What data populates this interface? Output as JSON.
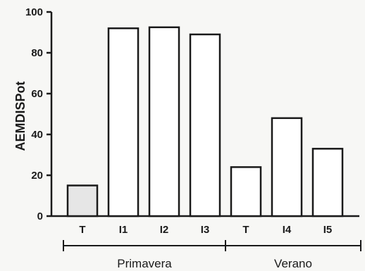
{
  "chart_data": {
    "type": "bar",
    "title": "",
    "xlabel": "",
    "ylabel": "AEMDISPot",
    "ylim": [
      0,
      100
    ],
    "yticks": [
      0,
      20,
      40,
      60,
      80,
      100
    ],
    "grid": false,
    "categories": [
      "T",
      "I1",
      "I2",
      "I3",
      "T",
      "I4",
      "I5"
    ],
    "values": [
      15,
      92,
      92.5,
      89,
      24,
      48,
      33
    ],
    "bar_fills": [
      "#e6e6e6",
      "#ffffff",
      "#ffffff",
      "#ffffff",
      "#ffffff",
      "#ffffff",
      "#ffffff"
    ],
    "groups": [
      {
        "label": "Primavera",
        "categories": [
          0,
          1,
          2,
          3
        ]
      },
      {
        "label": "Verano",
        "categories": [
          4,
          5,
          6
        ]
      }
    ],
    "colors": {
      "stroke": "#1a1a1a",
      "background": "#f7f7f5"
    }
  }
}
